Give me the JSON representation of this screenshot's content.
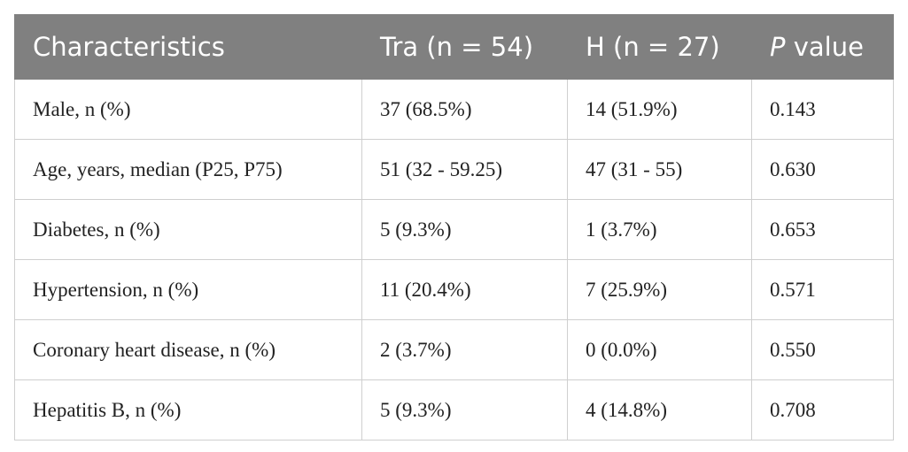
{
  "table": {
    "header": [
      "Characteristics",
      "Tra (n = 54)",
      "H (n = 27)",
      {
        "italic": "P",
        "text": "value"
      }
    ],
    "rows": [
      [
        "Male, n (%)",
        "37 (68.5%)",
        "14 (51.9%)",
        "0.143"
      ],
      [
        "Age, years, median (P25, P75)",
        "51 (32 - 59.25)",
        "47 (31 - 55)",
        "0.630"
      ],
      [
        "Diabetes, n (%)",
        "5 (9.3%)",
        "1 (3.7%)",
        "0.653"
      ],
      [
        "Hypertension, n (%)",
        "11 (20.4%)",
        "7 (25.9%)",
        "0.571"
      ],
      [
        "Coronary heart disease, n (%)",
        "2 (3.7%)",
        "0 (0.0%)",
        "0.550"
      ],
      [
        "Hepatitis B, n (%)",
        "5 (9.3%)",
        "4 (14.8%)",
        "0.708"
      ]
    ]
  }
}
